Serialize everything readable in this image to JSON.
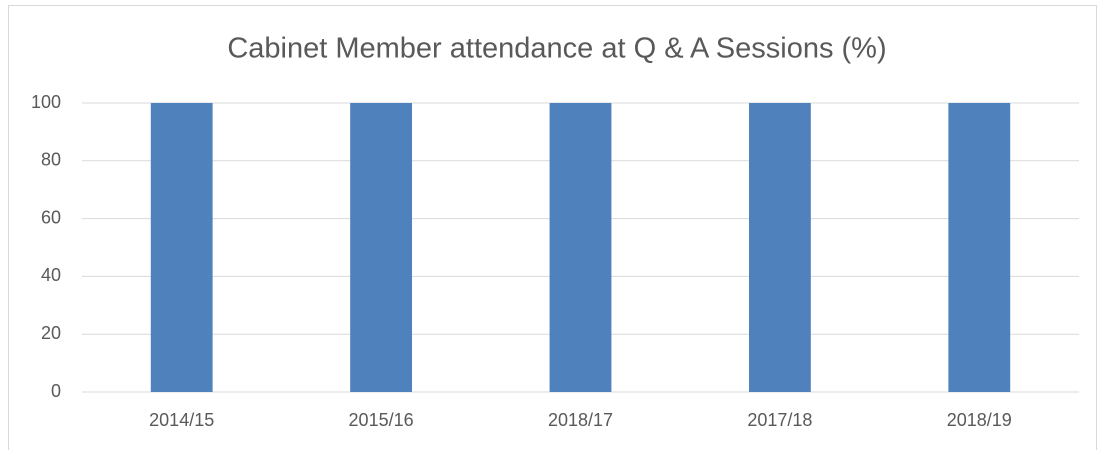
{
  "chart_data": {
    "type": "bar",
    "title": "Cabinet Member attendance at Q & A Sessions (%)",
    "categories": [
      "2014/15",
      "2015/16",
      "2018/17",
      "2017/18",
      "2018/19"
    ],
    "values": [
      100,
      100,
      100,
      100,
      100
    ],
    "color": "#4f81bd",
    "ylim": [
      0,
      100
    ],
    "yticks": [
      0,
      20,
      40,
      60,
      80,
      100
    ],
    "grid": true
  }
}
